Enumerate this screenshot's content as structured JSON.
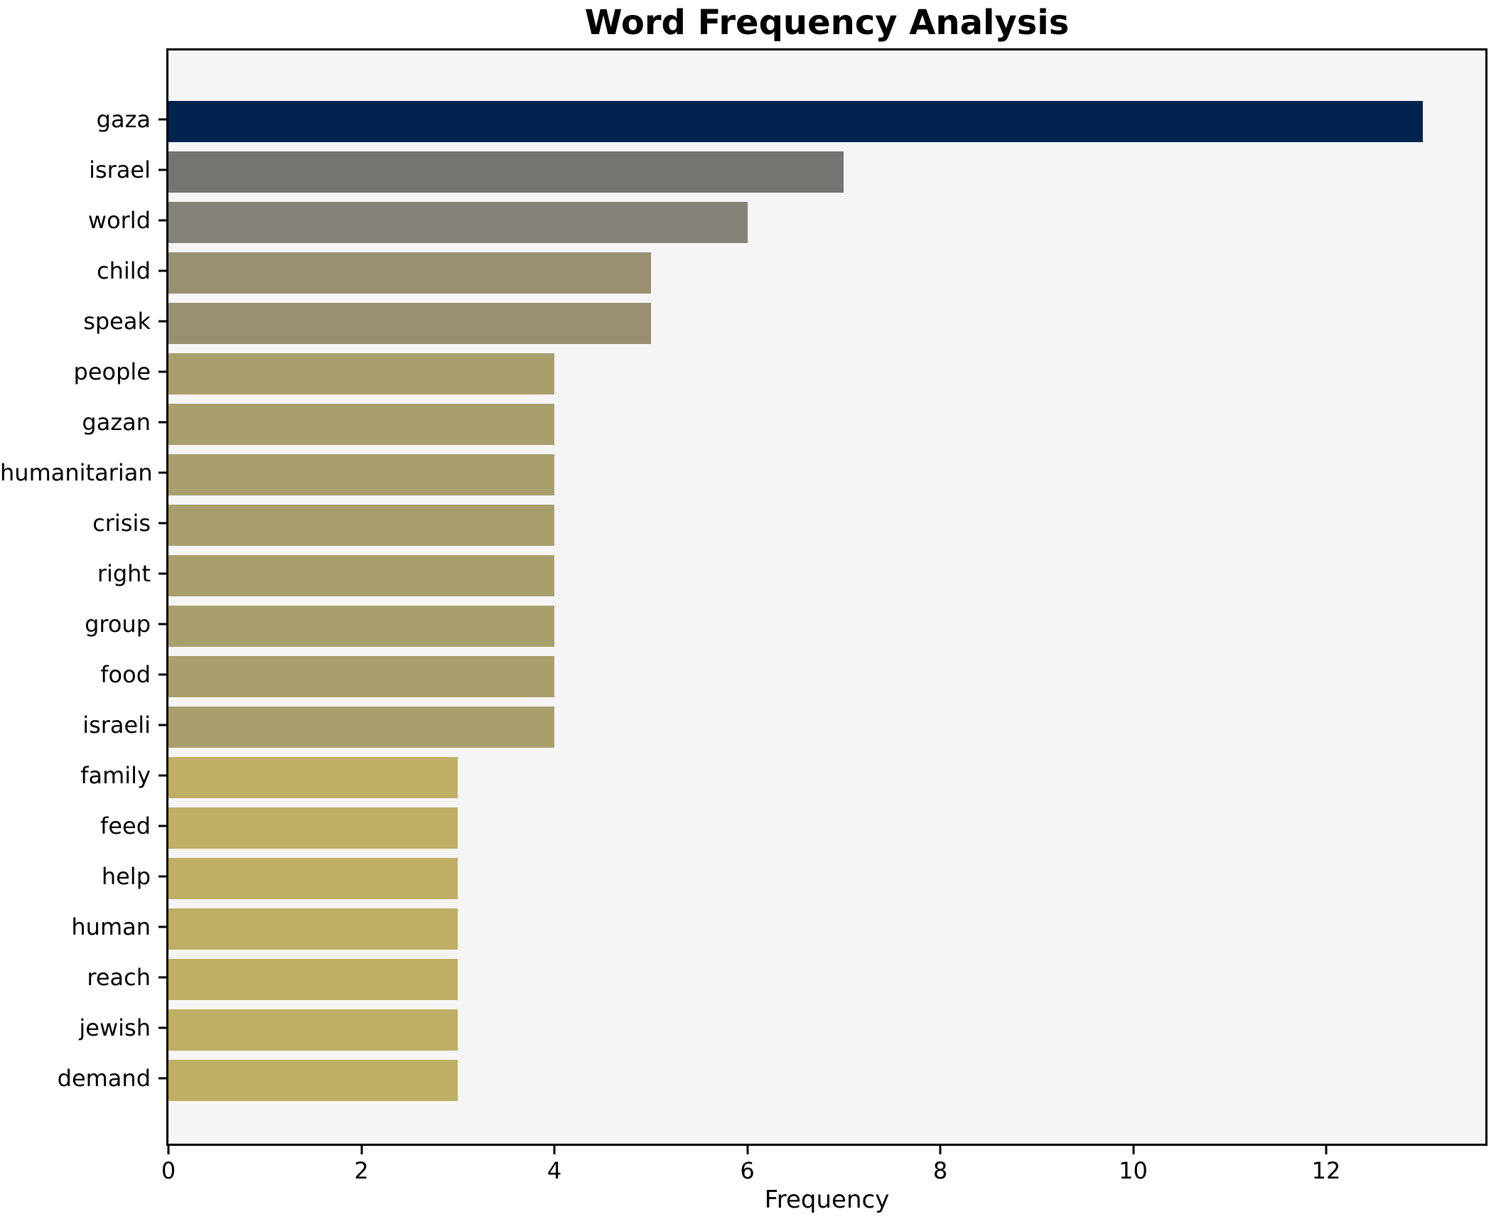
{
  "chart_data": {
    "type": "bar",
    "orientation": "horizontal",
    "title": "Word Frequency Analysis",
    "xlabel": "Frequency",
    "ylabel": "",
    "categories": [
      "gaza",
      "israel",
      "world",
      "child",
      "speak",
      "people",
      "gazan",
      "humanitarian",
      "crisis",
      "right",
      "group",
      "food",
      "israeli",
      "family",
      "feed",
      "help",
      "human",
      "reach",
      "jewish",
      "demand"
    ],
    "values": [
      13,
      7,
      6,
      5,
      5,
      4,
      4,
      4,
      4,
      4,
      4,
      4,
      4,
      3,
      3,
      3,
      3,
      3,
      3,
      3
    ],
    "bar_colors": [
      "#01234e",
      "#767470",
      "#85827a",
      "#989070",
      "#989070",
      "#a99f6c",
      "#a99f6c",
      "#a99f6c",
      "#a99f6c",
      "#a99f6c",
      "#a99f6c",
      "#a99f6c",
      "#a99f6c",
      "#bfae63",
      "#bfae63",
      "#bfae63",
      "#bfae63",
      "#bfae63",
      "#bfae63",
      "#bfae63"
    ],
    "xlim": [
      0,
      13.65
    ],
    "x_ticks": [
      0,
      2,
      4,
      6,
      8,
      10,
      12
    ],
    "grid": false,
    "legend": null,
    "plot_bg": "#f5f5f6",
    "fig_bg": "#ffffff",
    "spine_color": "#000000"
  }
}
